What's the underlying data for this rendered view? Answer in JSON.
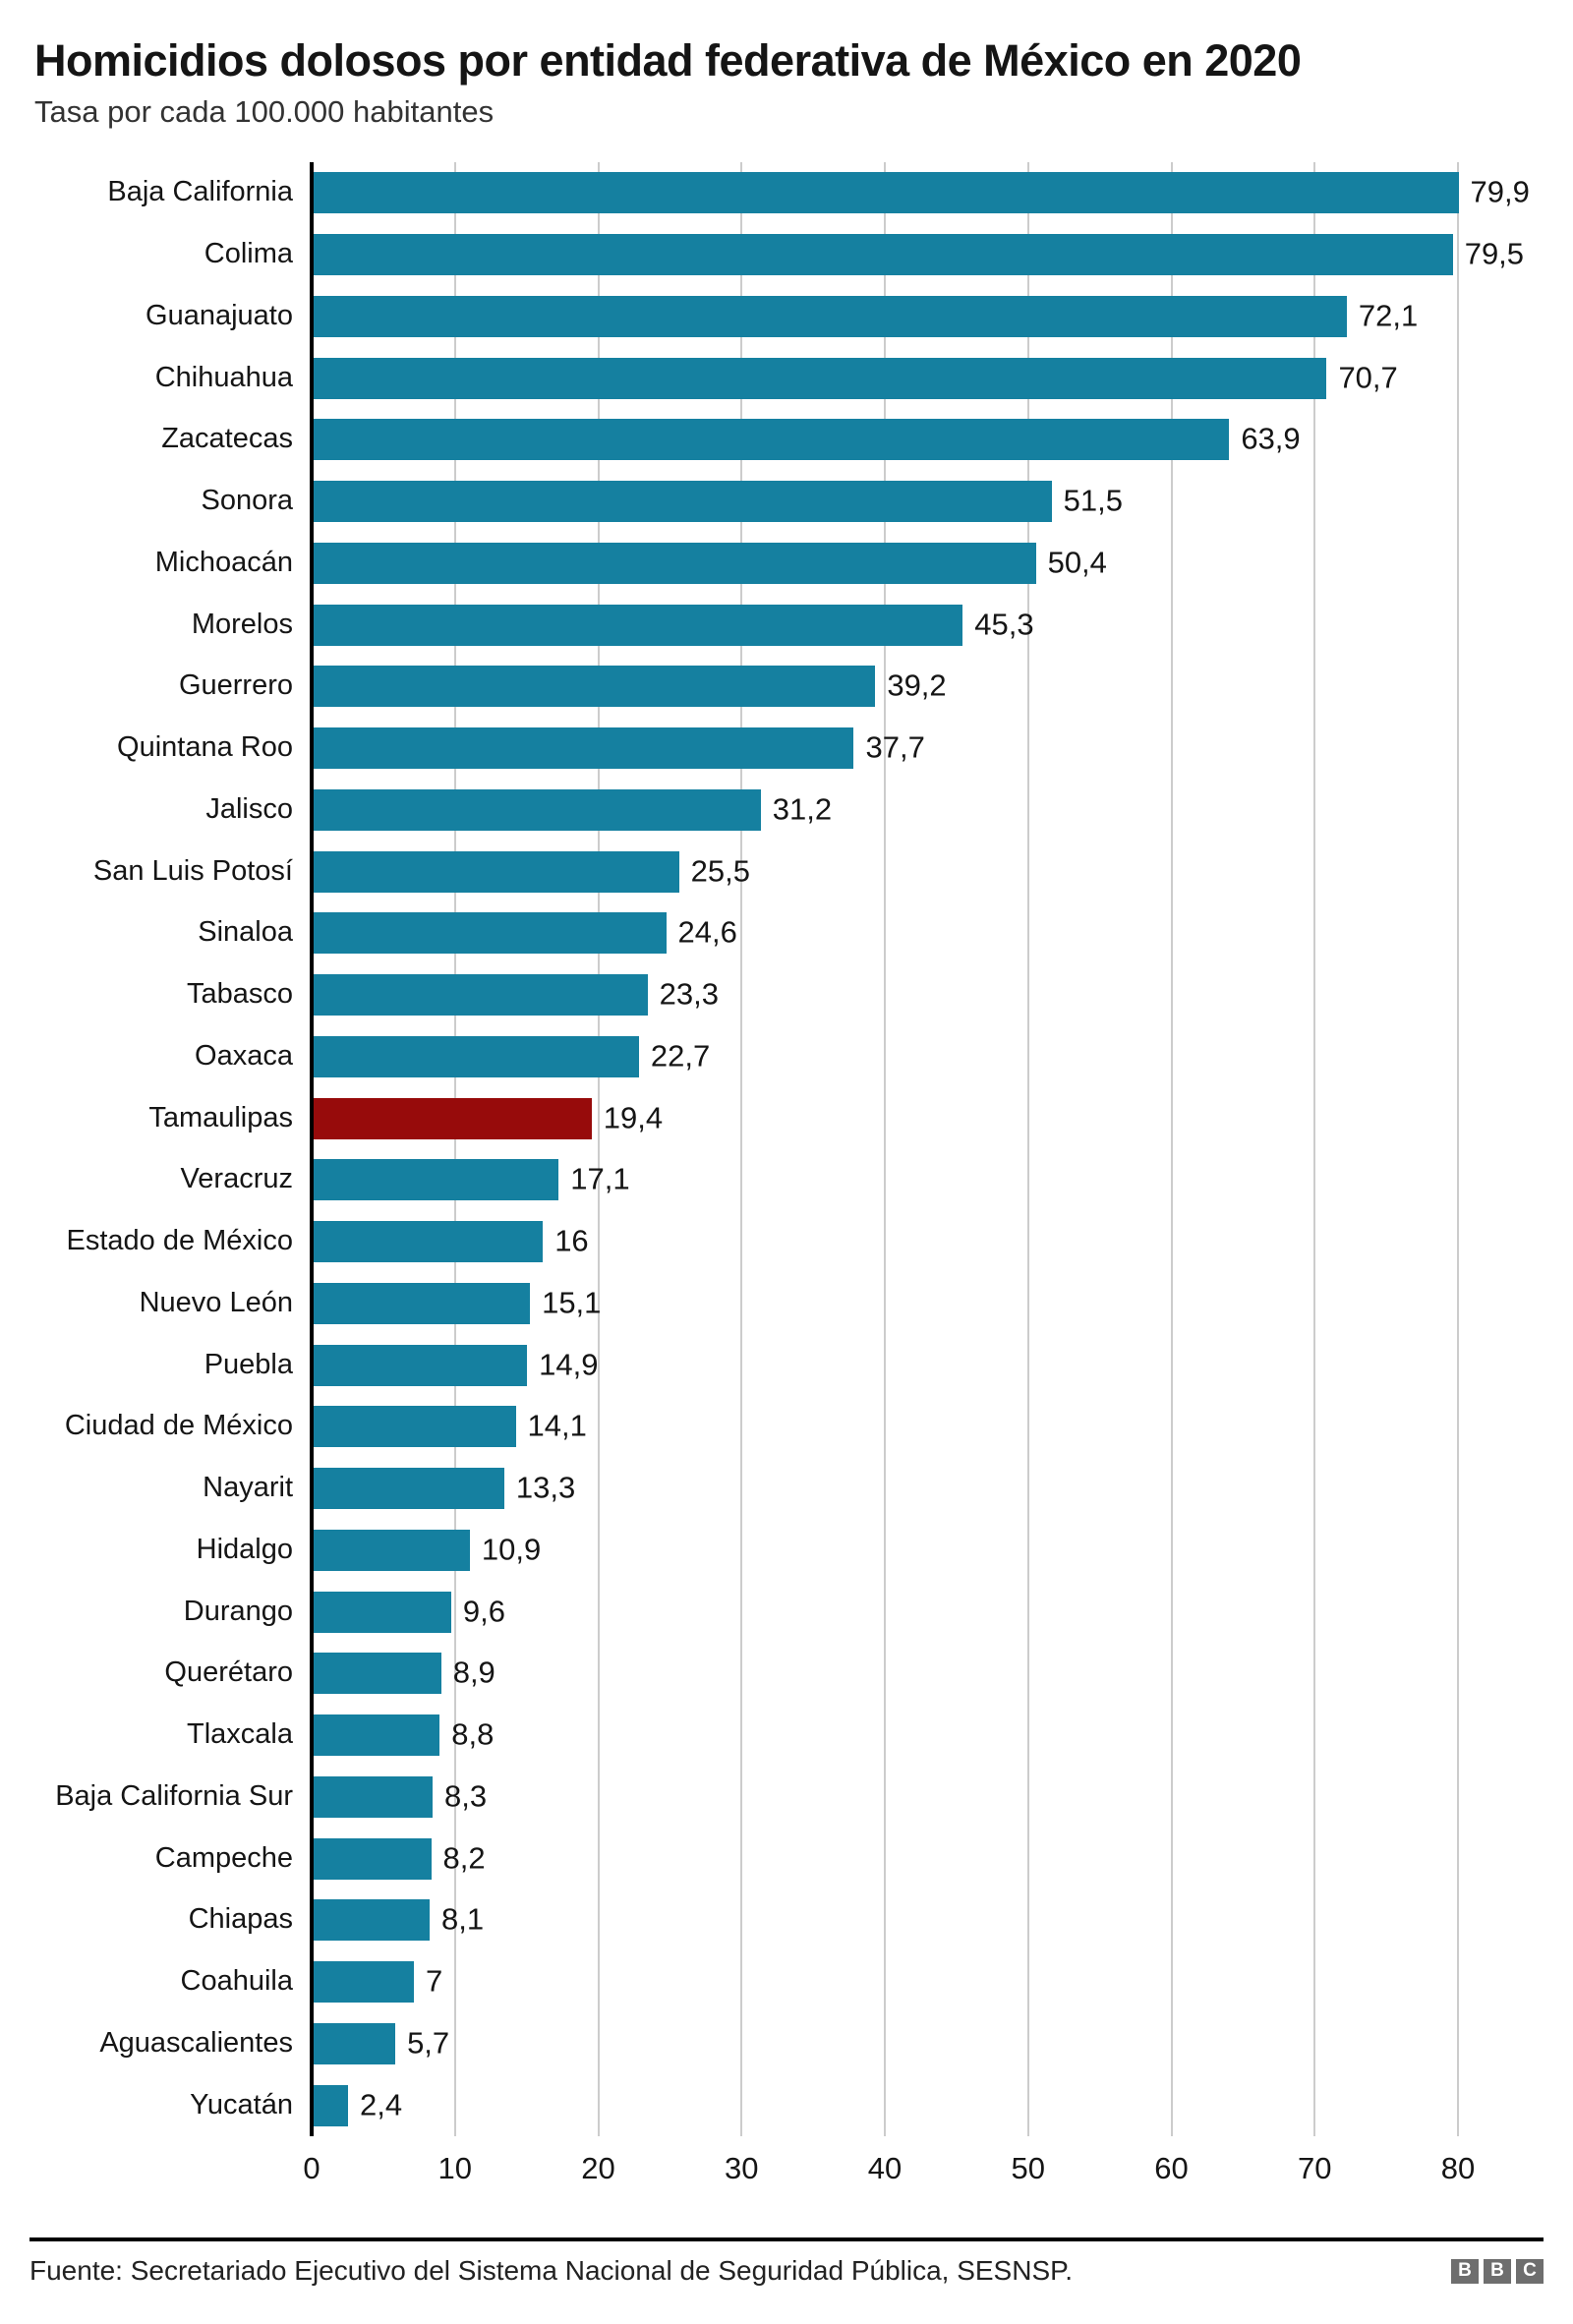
{
  "page": {
    "title": "Homicidios dolosos por entidad federativa de México en 2020",
    "subtitle": "Tasa por cada 100.000 habitantes"
  },
  "chart_data": {
    "type": "bar",
    "orientation": "horizontal",
    "title": "Homicidios dolosos por entidad federativa de México en 2020",
    "subtitle": "Tasa por cada 100.000 habitantes",
    "xlabel": "",
    "ylabel": "",
    "xlim": [
      0,
      80
    ],
    "xticks": [
      0,
      10,
      20,
      30,
      40,
      50,
      60,
      70,
      80
    ],
    "grid": true,
    "legend": false,
    "bar_color": "#1580a0",
    "highlight_category": "Tamaulipas",
    "highlight_color": "#970b0b",
    "categories": [
      "Baja California",
      "Colima",
      "Guanajuato",
      "Chihuahua",
      "Zacatecas",
      "Sonora",
      "Michoacán",
      "Morelos",
      "Guerrero",
      "Quintana Roo",
      "Jalisco",
      "San Luis Potosí",
      "Sinaloa",
      "Tabasco",
      "Oaxaca",
      "Tamaulipas",
      "Veracruz",
      "Estado de México",
      "Nuevo León",
      "Puebla",
      "Ciudad de México",
      "Nayarit",
      "Hidalgo",
      "Durango",
      "Querétaro",
      "Tlaxcala",
      "Baja California Sur",
      "Campeche",
      "Chiapas",
      "Coahuila",
      "Aguascalientes",
      "Yucatán"
    ],
    "values": [
      79.9,
      79.5,
      72.1,
      70.7,
      63.9,
      51.5,
      50.4,
      45.3,
      39.2,
      37.7,
      31.2,
      25.5,
      24.6,
      23.3,
      22.7,
      19.4,
      17.1,
      16,
      15.1,
      14.9,
      14.1,
      13.3,
      10.9,
      9.6,
      8.9,
      8.8,
      8.3,
      8.2,
      8.1,
      7,
      5.7,
      2.4
    ],
    "value_labels": [
      "79,9",
      "79,5",
      "72,1",
      "70,7",
      "63,9",
      "51,5",
      "50,4",
      "45,3",
      "39,2",
      "37,7",
      "31,2",
      "25,5",
      "24,6",
      "23,3",
      "22,7",
      "19,4",
      "17,1",
      "16",
      "15,1",
      "14,9",
      "14,1",
      "13,3",
      "10,9",
      "9,6",
      "8,9",
      "8,8",
      "8,3",
      "8,2",
      "8,1",
      "7",
      "5,7",
      "2,4"
    ]
  },
  "footer": {
    "source": "Fuente: Secretariado Ejecutivo del Sistema Nacional de Seguridad Pública, SESNSP.",
    "logo_letters": [
      "B",
      "B",
      "C"
    ]
  }
}
